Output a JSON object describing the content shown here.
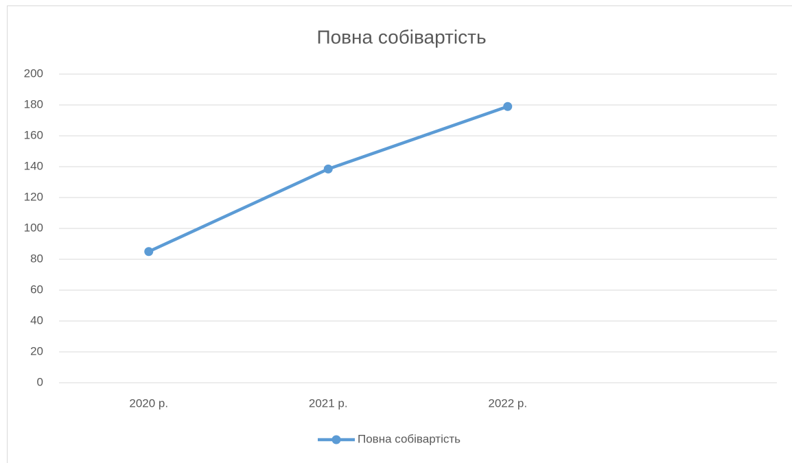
{
  "chart_data": {
    "type": "line",
    "title": "Повна собівартість",
    "categories": [
      "2020 р.",
      "2021 р.",
      "2022 р.",
      null
    ],
    "series": [
      {
        "name": "Повна собівартість",
        "color": "#5b9bd5",
        "values": [
          85,
          138.5,
          179,
          null
        ]
      }
    ],
    "ylim": [
      0,
      200
    ],
    "yticks": [
      0,
      20,
      40,
      60,
      80,
      100,
      120,
      140,
      160,
      180,
      200
    ],
    "grid": true,
    "legend": "bottom"
  }
}
